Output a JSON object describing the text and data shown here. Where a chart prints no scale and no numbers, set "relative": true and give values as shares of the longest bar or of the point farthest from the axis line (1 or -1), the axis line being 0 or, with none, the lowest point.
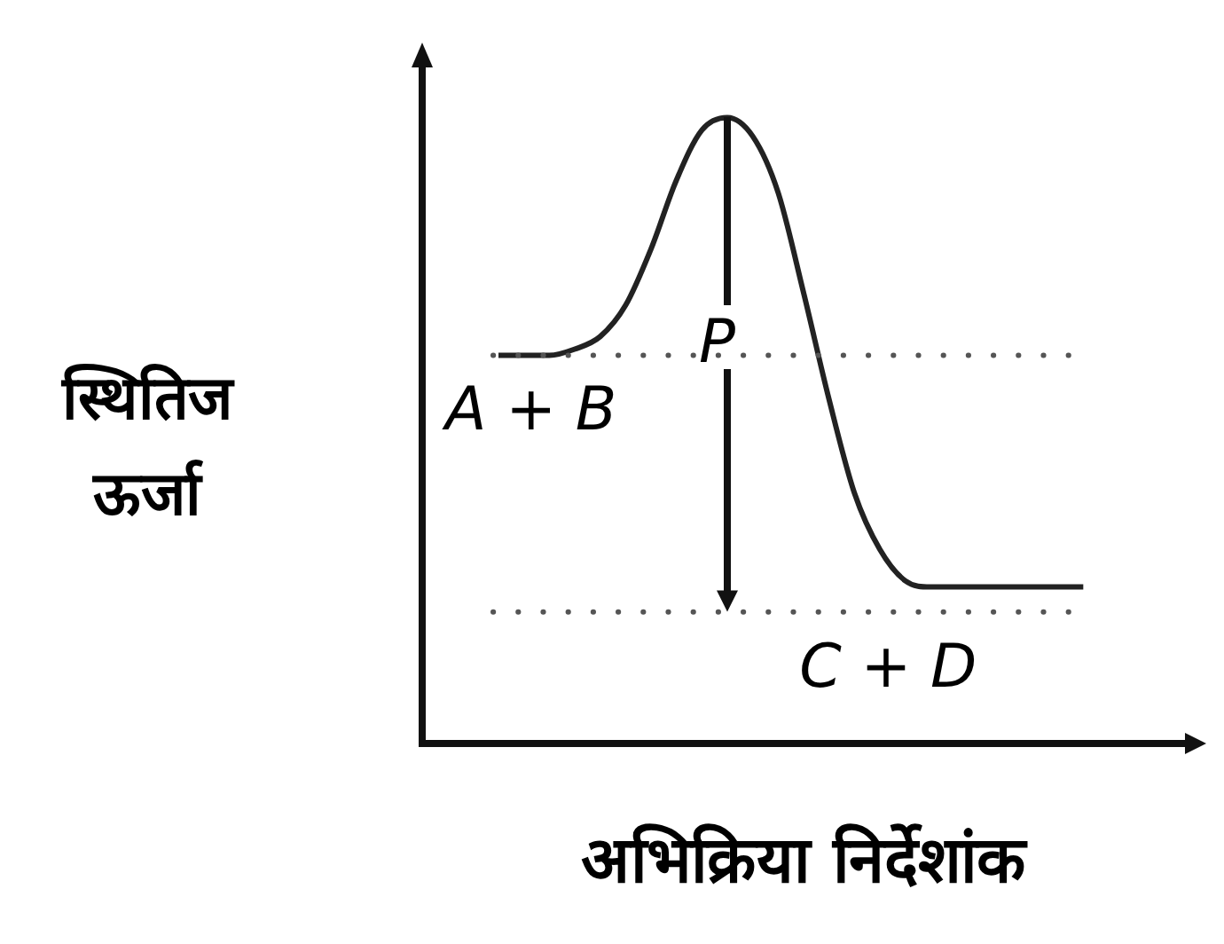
{
  "chart_data": {
    "type": "line",
    "relative": true,
    "ylabel": "स्थितिज ऊर्जा",
    "xlabel": "अभिक्रिया निर्देशांक",
    "categories": [
      null,
      null,
      null,
      null,
      null,
      null,
      null,
      null,
      null,
      null,
      null,
      null,
      null,
      null,
      null,
      null,
      null,
      null,
      null,
      null,
      null,
      null,
      null,
      null,
      null,
      null,
      null,
      null,
      null,
      null,
      null
    ],
    "series": [
      {
        "color": "#222222",
        "values": [
          null,
          null,
          null,
          0.62,
          0.62,
          0.62,
          0.63,
          0.65,
          0.7,
          0.79,
          0.9,
          0.98,
          1.0,
          0.97,
          0.88,
          0.72,
          0.55,
          0.4,
          0.31,
          0.26,
          0.25,
          0.25,
          0.25,
          0.25,
          0.25,
          0.25,
          0.25,
          null,
          null,
          null,
          null
        ]
      }
    ],
    "ref_lines": [
      {
        "axis": "y",
        "value": 0.62,
        "color": "#555555",
        "line_style": "dotted"
      },
      {
        "axis": "y",
        "value": 0.21,
        "color": "#555555",
        "line_style": "dotted"
      }
    ],
    "annotations": [
      "A + B",
      "P",
      "C + D"
    ],
    "marker": "none",
    "line_style": "solid",
    "grid": false,
    "legend": false
  }
}
